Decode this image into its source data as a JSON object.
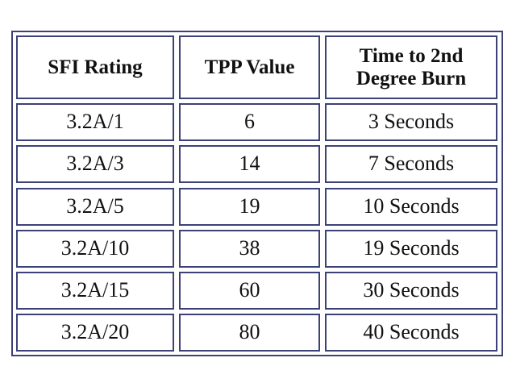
{
  "table": {
    "header": [
      "SFI Rating",
      "TPP Value",
      "Time to 2nd Degree Burn"
    ],
    "rows": [
      [
        "3.2A/1",
        "6",
        "3 Seconds"
      ],
      [
        "3.2A/3",
        "14",
        "7 Seconds"
      ],
      [
        "3.2A/5",
        "19",
        "10 Seconds"
      ],
      [
        "3.2A/10",
        "38",
        "19 Seconds"
      ],
      [
        "3.2A/15",
        "60",
        "30 Seconds"
      ],
      [
        "3.2A/20",
        "80",
        "40 Seconds"
      ]
    ]
  }
}
